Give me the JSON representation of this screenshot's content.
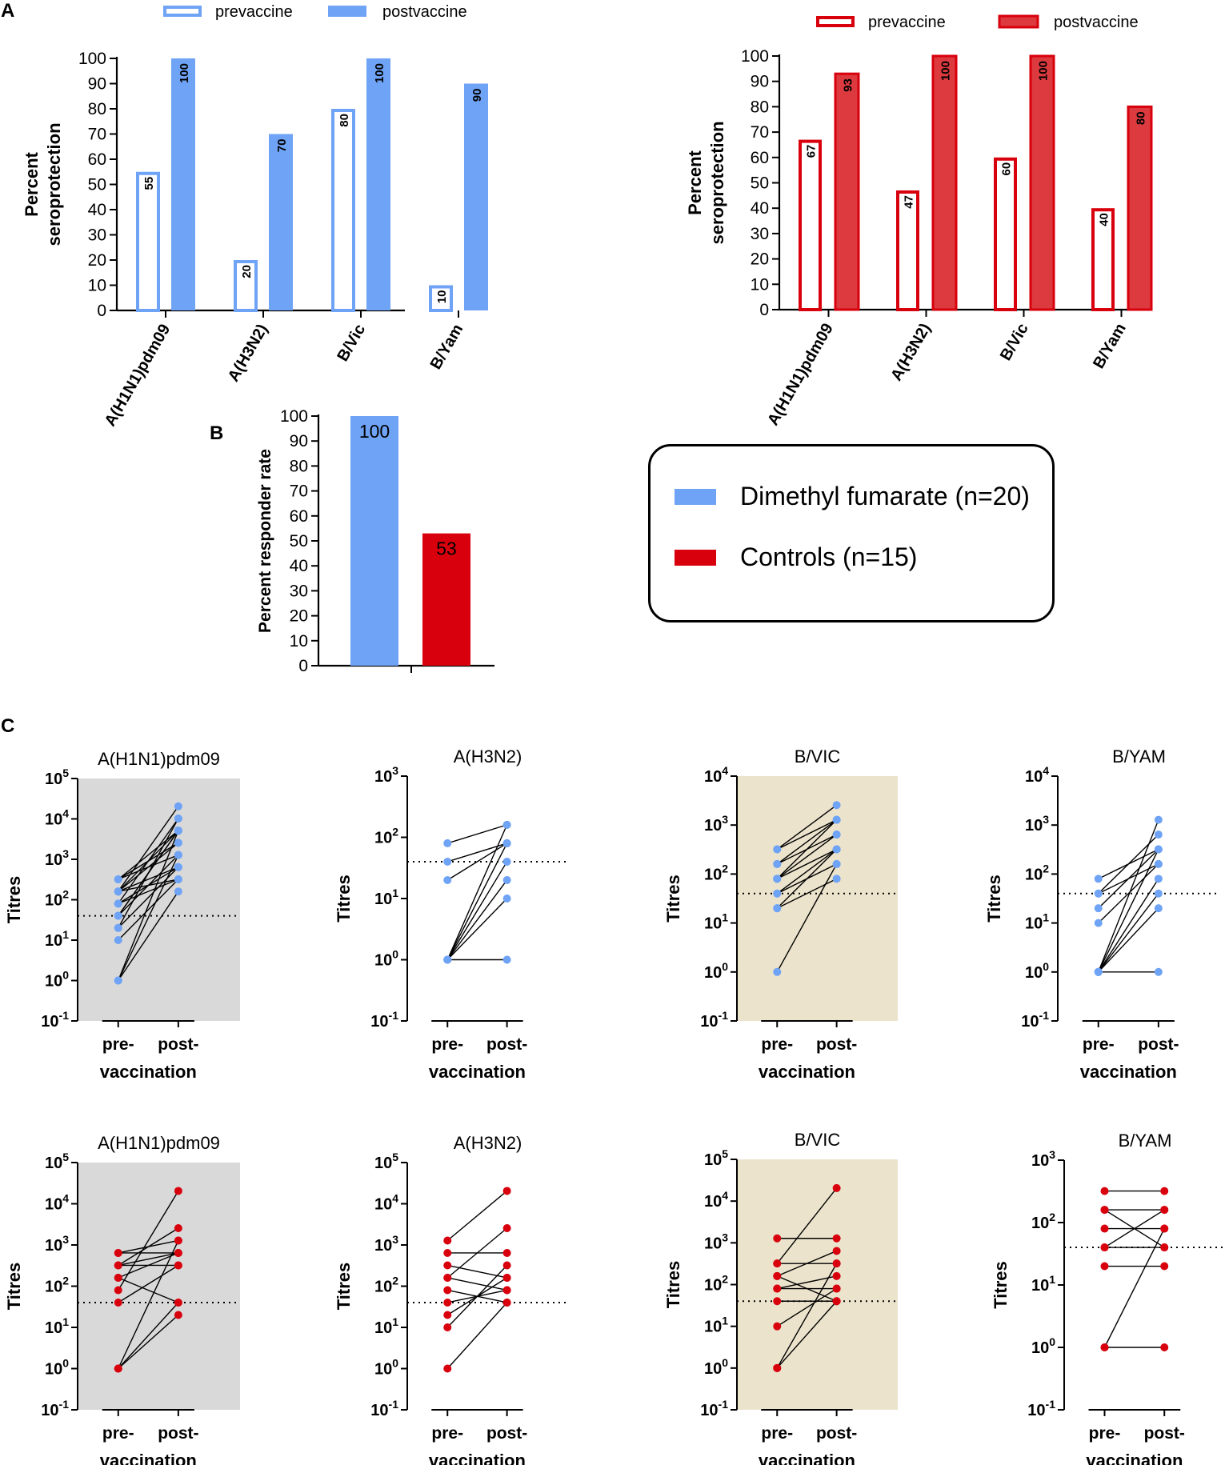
{
  "panel_labels": {
    "a": "A",
    "b": "B",
    "c": "C"
  },
  "colors": {
    "dmf": "#6fa3f5",
    "ctrl": "#d9000d",
    "ctrl_bar": "#dc3a3e",
    "grey_bg": "#d9d9d9",
    "tan_bg": "#ebe3cc"
  },
  "legend": {
    "dmf_label": "Dimethyl fumarate (n=20)",
    "ctrl_label": "Controls (n=15)"
  },
  "chart_data": [
    {
      "id": "A-dmf",
      "type": "bar",
      "title": "",
      "ylabel_line1": "Percent",
      "ylabel_line2": "seroprotection",
      "ylim": [
        0,
        100
      ],
      "yticks": [
        0,
        10,
        20,
        30,
        40,
        50,
        60,
        70,
        80,
        90,
        100
      ],
      "categories": [
        "A(H1N1)pdm09",
        "A(H3N2)",
        "B/Vic",
        "B/Yam"
      ],
      "series": [
        {
          "name": "prevaccine",
          "style": "hollow",
          "values": [
            55,
            20,
            80,
            10
          ]
        },
        {
          "name": "postvaccine",
          "style": "filled",
          "values": [
            100,
            70,
            100,
            90
          ]
        }
      ]
    },
    {
      "id": "A-ctrl",
      "type": "bar",
      "title": "",
      "ylabel_line1": "Percent",
      "ylabel_line2": "seroprotection",
      "ylim": [
        0,
        100
      ],
      "yticks": [
        0,
        10,
        20,
        30,
        40,
        50,
        60,
        70,
        80,
        90,
        100
      ],
      "categories": [
        "A(H1N1)pdm09",
        "A(H3N2)",
        "B/Vic",
        "B/Yam"
      ],
      "series": [
        {
          "name": "prevaccine",
          "style": "hollow",
          "values": [
            67,
            47,
            60,
            40
          ]
        },
        {
          "name": "postvaccine",
          "style": "filled",
          "values": [
            93,
            100,
            100,
            80
          ]
        }
      ]
    },
    {
      "id": "B",
      "type": "bar",
      "title": "",
      "ylabel": "Percent responder rate",
      "ylim": [
        0,
        100
      ],
      "yticks": [
        0,
        10,
        20,
        30,
        40,
        50,
        60,
        70,
        80,
        90,
        100
      ],
      "categories": [
        "Dimethyl fumarate (n=20)",
        "Controls (n=15)"
      ],
      "values": [
        100,
        53
      ]
    },
    {
      "id": "C-dmf-h1n1",
      "type": "line",
      "title": "A(H1N1)pdm09",
      "group": "dmf",
      "bg": "grey",
      "ylabel": "Titres",
      "xlabels": [
        "pre-",
        "post-"
      ],
      "xlabel": "vaccination",
      "ylog_range": [
        -1,
        5
      ],
      "threshold": 40,
      "pairs": [
        [
          1,
          160
        ],
        [
          1,
          1280
        ],
        [
          1,
          5120
        ],
        [
          10,
          320
        ],
        [
          20,
          640
        ],
        [
          40,
          1280
        ],
        [
          40,
          5120
        ],
        [
          80,
          10240
        ],
        [
          160,
          20480
        ],
        [
          160,
          2560
        ],
        [
          320,
          5120
        ],
        [
          80,
          320
        ],
        [
          160,
          640
        ],
        [
          320,
          1280
        ],
        [
          40,
          5120
        ],
        [
          20,
          10240
        ],
        [
          160,
          320
        ],
        [
          80,
          640
        ],
        [
          320,
          2560
        ],
        [
          160,
          5120
        ]
      ]
    },
    {
      "id": "C-dmf-h3n2",
      "type": "line",
      "title": "A(H3N2)",
      "group": "dmf",
      "bg": "none",
      "ylabel": "Titres",
      "xlabels": [
        "pre-",
        "post-"
      ],
      "xlabel": "vaccination",
      "ylog_range": [
        -1,
        3
      ],
      "threshold": 40,
      "pairs": [
        [
          80,
          160
        ],
        [
          40,
          80
        ],
        [
          20,
          80
        ],
        [
          1,
          10
        ],
        [
          1,
          20
        ],
        [
          1,
          40
        ],
        [
          1,
          80
        ],
        [
          1,
          160
        ],
        [
          1,
          1
        ]
      ]
    },
    {
      "id": "C-dmf-bvic",
      "type": "line",
      "title": "B/VIC",
      "group": "dmf",
      "bg": "tan",
      "ylabel": "Titres",
      "xlabels": [
        "pre-",
        "post-"
      ],
      "xlabel": "vaccination",
      "ylog_range": [
        -1,
        4
      ],
      "threshold": 40,
      "pairs": [
        [
          320,
          2560
        ],
        [
          160,
          1280
        ],
        [
          80,
          640
        ],
        [
          80,
          320
        ],
        [
          40,
          160
        ],
        [
          20,
          80
        ],
        [
          1,
          160
        ],
        [
          160,
          640
        ],
        [
          40,
          320
        ],
        [
          80,
          1280
        ],
        [
          20,
          320
        ],
        [
          320,
          1280
        ]
      ]
    },
    {
      "id": "C-dmf-byam",
      "type": "line",
      "title": "B/YAM",
      "group": "dmf",
      "bg": "none",
      "ylabel": "Titres",
      "xlabels": [
        "pre-",
        "post-"
      ],
      "xlabel": "vaccination",
      "ylog_range": [
        -1,
        4
      ],
      "threshold": 40,
      "pairs": [
        [
          80,
          320
        ],
        [
          40,
          640
        ],
        [
          20,
          320
        ],
        [
          10,
          160
        ],
        [
          1,
          1280
        ],
        [
          1,
          80
        ],
        [
          1,
          40
        ],
        [
          1,
          20
        ],
        [
          1,
          1
        ],
        [
          40,
          160
        ],
        [
          1,
          320
        ]
      ]
    },
    {
      "id": "C-ctrl-h1n1",
      "type": "line",
      "title": "A(H1N1)pdm09",
      "group": "ctrl",
      "bg": "grey",
      "ylabel": "Titres",
      "xlabels": [
        "pre-",
        "post-"
      ],
      "xlabel": "vaccination",
      "ylog_range": [
        -1,
        5
      ],
      "threshold": 40,
      "pairs": [
        [
          640,
          1280
        ],
        [
          640,
          640
        ],
        [
          320,
          2560
        ],
        [
          320,
          320
        ],
        [
          160,
          640
        ],
        [
          80,
          20480
        ],
        [
          40,
          320
        ],
        [
          1,
          40
        ],
        [
          1,
          20
        ],
        [
          1,
          1280
        ],
        [
          160,
          40
        ],
        [
          320,
          640
        ]
      ]
    },
    {
      "id": "C-ctrl-h3n2",
      "type": "line",
      "title": "A(H3N2)",
      "group": "ctrl",
      "bg": "none",
      "ylabel": "Titres",
      "xlabels": [
        "pre-",
        "post-"
      ],
      "xlabel": "vaccination",
      "ylog_range": [
        -1,
        5
      ],
      "threshold": 40,
      "pairs": [
        [
          1280,
          20480
        ],
        [
          640,
          640
        ],
        [
          320,
          160
        ],
        [
          160,
          2560
        ],
        [
          40,
          80
        ],
        [
          20,
          160
        ],
        [
          10,
          320
        ],
        [
          1,
          40
        ],
        [
          80,
          40
        ],
        [
          160,
          80
        ]
      ]
    },
    {
      "id": "C-ctrl-bvic",
      "type": "line",
      "title": "B/VIC",
      "group": "ctrl",
      "bg": "tan",
      "ylabel": "Titres",
      "xlabels": [
        "pre-",
        "post-"
      ],
      "xlabel": "vaccination",
      "ylog_range": [
        -1,
        5
      ],
      "threshold": 40,
      "pairs": [
        [
          1280,
          1280
        ],
        [
          320,
          20480
        ],
        [
          320,
          320
        ],
        [
          160,
          640
        ],
        [
          80,
          160
        ],
        [
          40,
          40
        ],
        [
          10,
          80
        ],
        [
          1,
          40
        ],
        [
          1,
          320
        ],
        [
          160,
          40
        ],
        [
          80,
          80
        ]
      ]
    },
    {
      "id": "C-ctrl-byam",
      "type": "line",
      "title": "B/YAM",
      "group": "ctrl",
      "bg": "none",
      "ylabel": "Titres",
      "xlabels": [
        "pre-",
        "post-"
      ],
      "xlabel": "vaccination",
      "ylog_range": [
        -1,
        3
      ],
      "threshold": 40,
      "pairs": [
        [
          320,
          320
        ],
        [
          160,
          160
        ],
        [
          80,
          80
        ],
        [
          40,
          40
        ],
        [
          20,
          20
        ],
        [
          1,
          1
        ],
        [
          1,
          80
        ],
        [
          40,
          160
        ],
        [
          160,
          40
        ]
      ]
    }
  ]
}
